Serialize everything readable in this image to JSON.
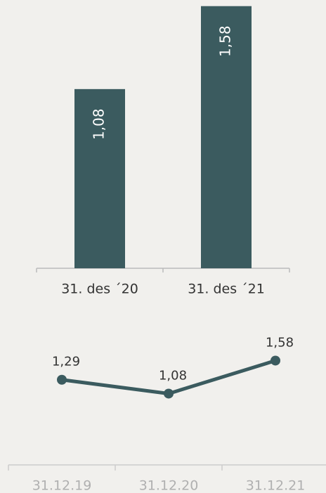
{
  "chart_data": [
    {
      "type": "bar",
      "categories": [
        "31. des ´20",
        "31. des ´21"
      ],
      "values": [
        1.08,
        1.58
      ],
      "value_labels": [
        "1,08",
        "1,58"
      ],
      "color": "#3b5b5f",
      "ylim": [
        0,
        1.6
      ]
    },
    {
      "type": "line",
      "categories": [
        "31.12.19",
        "31.12.20",
        "31.12.21"
      ],
      "values": [
        1.29,
        1.08,
        1.58
      ],
      "value_labels": [
        "1,29",
        "1,08",
        "1,58"
      ],
      "color": "#3b5b5f",
      "ylim": [
        0,
        2
      ]
    }
  ]
}
